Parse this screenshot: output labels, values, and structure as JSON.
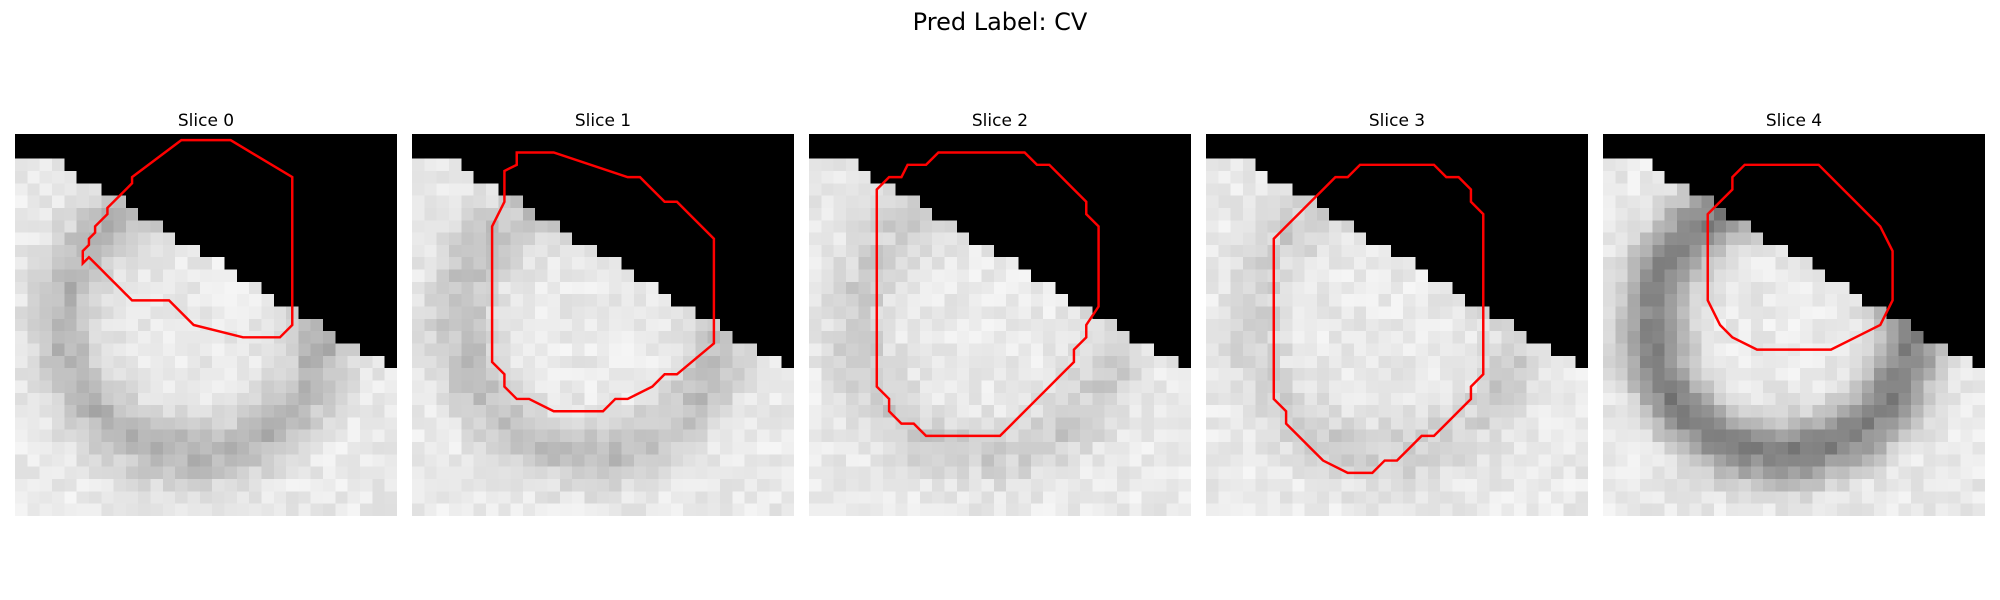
{
  "figure": {
    "title": "Pred Label: CV"
  },
  "colors": {
    "contour": "#ff0000",
    "background": "#000000"
  },
  "panels": [
    {
      "title": "Slice 0",
      "contour": [
        [
          5.5,
          10.5
        ],
        [
          5.5,
          9.5
        ],
        [
          6.0,
          9.0
        ],
        [
          6.0,
          8.5
        ],
        [
          6.5,
          8.0
        ],
        [
          6.5,
          7.5
        ],
        [
          7.5,
          6.5
        ],
        [
          7.5,
          6.0
        ],
        [
          9.5,
          4.0
        ],
        [
          9.5,
          3.5
        ],
        [
          13.5,
          0.5
        ],
        [
          17.5,
          0.5
        ],
        [
          22.5,
          3.5
        ],
        [
          22.5,
          15.5
        ],
        [
          21.5,
          16.5
        ],
        [
          18.5,
          16.5
        ],
        [
          14.5,
          15.5
        ],
        [
          12.5,
          13.5
        ],
        [
          10.5,
          13.5
        ],
        [
          9.5,
          13.5
        ],
        [
          9.0,
          13.0
        ],
        [
          8.5,
          12.5
        ],
        [
          8.0,
          12.0
        ],
        [
          7.5,
          11.5
        ],
        [
          7.0,
          11.0
        ],
        [
          6.5,
          10.5
        ],
        [
          6.0,
          10.0
        ]
      ]
    },
    {
      "title": "Slice 1",
      "contour": [
        [
          6.5,
          9.5
        ],
        [
          6.5,
          18.5
        ],
        [
          7.5,
          19.5
        ],
        [
          7.5,
          20.5
        ],
        [
          8.5,
          21.5
        ],
        [
          9.5,
          21.5
        ],
        [
          11.5,
          22.5
        ],
        [
          15.5,
          22.5
        ],
        [
          16.5,
          21.5
        ],
        [
          17.5,
          21.5
        ],
        [
          19.5,
          20.5
        ],
        [
          20.5,
          19.5
        ],
        [
          21.5,
          19.5
        ],
        [
          24.5,
          17.0
        ],
        [
          24.5,
          8.5
        ],
        [
          22.5,
          6.5
        ],
        [
          21.5,
          5.5
        ],
        [
          20.5,
          5.5
        ],
        [
          19.5,
          4.5
        ],
        [
          18.5,
          3.5
        ],
        [
          17.5,
          3.5
        ],
        [
          11.5,
          1.5
        ],
        [
          8.5,
          1.5
        ],
        [
          8.5,
          2.5
        ],
        [
          7.5,
          3.0
        ],
        [
          7.5,
          5.5
        ],
        [
          6.5,
          7.5
        ]
      ]
    },
    {
      "title": "Slice 2",
      "contour": [
        [
          5.5,
          5.5
        ],
        [
          5.5,
          20.5
        ],
        [
          6.5,
          21.5
        ],
        [
          6.5,
          22.5
        ],
        [
          7.5,
          23.5
        ],
        [
          8.5,
          23.5
        ],
        [
          9.5,
          24.5
        ],
        [
          13.5,
          24.5
        ],
        [
          15.5,
          24.5
        ],
        [
          16.5,
          23.5
        ],
        [
          17.5,
          22.5
        ],
        [
          18.5,
          21.5
        ],
        [
          19.5,
          20.5
        ],
        [
          20.5,
          19.5
        ],
        [
          21.5,
          18.5
        ],
        [
          21.5,
          17.5
        ],
        [
          22.5,
          16.5
        ],
        [
          22.5,
          15.5
        ],
        [
          23.5,
          14.0
        ],
        [
          23.5,
          7.5
        ],
        [
          22.5,
          6.5
        ],
        [
          22.5,
          5.5
        ],
        [
          21.5,
          4.5
        ],
        [
          20.5,
          3.5
        ],
        [
          19.5,
          2.5
        ],
        [
          18.5,
          2.5
        ],
        [
          17.5,
          1.5
        ],
        [
          10.5,
          1.5
        ],
        [
          9.5,
          2.5
        ],
        [
          8.0,
          2.5
        ],
        [
          7.5,
          3.5
        ],
        [
          6.5,
          3.5
        ],
        [
          5.5,
          4.5
        ]
      ]
    },
    {
      "title": "Slice 3",
      "contour": [
        [
          5.5,
          8.5
        ],
        [
          5.5,
          21.5
        ],
        [
          6.5,
          22.5
        ],
        [
          6.5,
          23.5
        ],
        [
          7.5,
          24.5
        ],
        [
          8.5,
          25.5
        ],
        [
          9.5,
          26.5
        ],
        [
          11.5,
          27.5
        ],
        [
          13.5,
          27.5
        ],
        [
          14.5,
          26.5
        ],
        [
          15.5,
          26.5
        ],
        [
          16.5,
          25.5
        ],
        [
          17.5,
          24.5
        ],
        [
          18.5,
          24.5
        ],
        [
          19.5,
          23.5
        ],
        [
          20.5,
          22.5
        ],
        [
          21.5,
          21.5
        ],
        [
          21.5,
          20.5
        ],
        [
          22.5,
          19.5
        ],
        [
          22.5,
          6.5
        ],
        [
          21.5,
          5.5
        ],
        [
          21.5,
          4.5
        ],
        [
          20.5,
          3.5
        ],
        [
          19.5,
          3.5
        ],
        [
          18.5,
          2.5
        ],
        [
          17.5,
          2.5
        ],
        [
          16.5,
          2.5
        ],
        [
          12.5,
          2.5
        ],
        [
          11.5,
          3.5
        ],
        [
          10.5,
          3.5
        ],
        [
          9.5,
          4.5
        ],
        [
          8.5,
          5.5
        ],
        [
          7.5,
          6.5
        ],
        [
          6.5,
          7.5
        ]
      ]
    },
    {
      "title": "Slice 4",
      "contour": [
        [
          8.5,
          6.5
        ],
        [
          8.5,
          13.5
        ],
        [
          9.5,
          15.5
        ],
        [
          10.5,
          16.5
        ],
        [
          12.5,
          17.5
        ],
        [
          18.5,
          17.5
        ],
        [
          20.5,
          16.5
        ],
        [
          22.5,
          15.5
        ],
        [
          23.5,
          13.5
        ],
        [
          23.5,
          9.5
        ],
        [
          22.5,
          7.5
        ],
        [
          21.5,
          6.5
        ],
        [
          20.5,
          5.5
        ],
        [
          19.5,
          4.5
        ],
        [
          18.5,
          3.5
        ],
        [
          17.5,
          2.5
        ],
        [
          14.5,
          2.5
        ],
        [
          11.5,
          2.5
        ],
        [
          10.5,
          3.5
        ],
        [
          10.5,
          4.5
        ],
        [
          9.5,
          5.5
        ]
      ]
    }
  ]
}
